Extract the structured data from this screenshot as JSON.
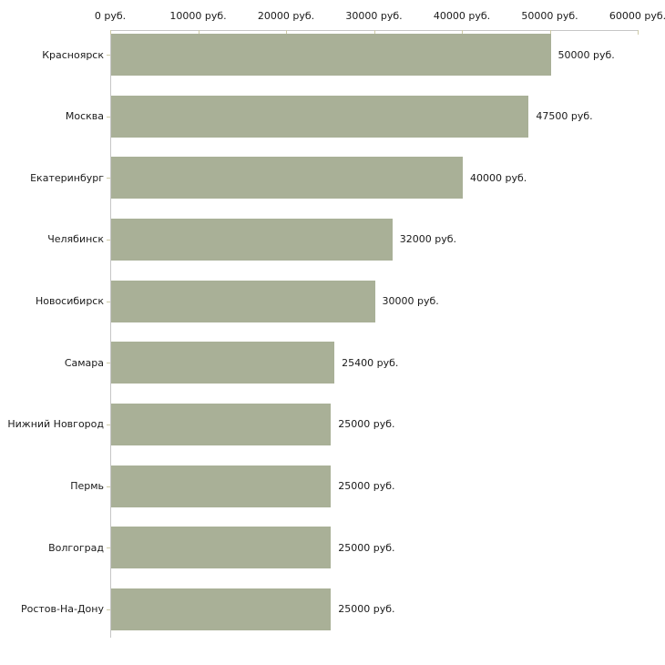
{
  "chart_data": {
    "type": "bar",
    "orientation": "horizontal",
    "title": "",
    "xlabel": "",
    "ylabel": "",
    "grid": false,
    "legend": null,
    "categories": [
      "Красноярск",
      "Москва",
      "Екатеринбург",
      "Челябинск",
      "Новосибирск",
      "Самара",
      "Нижний Новгород",
      "Пермь",
      "Волгоград",
      "Ростов-На-Дону"
    ],
    "values": [
      50000,
      47500,
      40000,
      32000,
      30000,
      25400,
      25000,
      25000,
      25000,
      25000
    ],
    "value_labels": [
      "50000 руб.",
      "47500 руб.",
      "40000 руб.",
      "32000 руб.",
      "30000 руб.",
      "25400 руб.",
      "25000 руб.",
      "25000 руб.",
      "25000 руб.",
      "25000 руб."
    ],
    "x_axis": {
      "position": "top",
      "min": 0,
      "max": 60000,
      "tick_values": [
        0,
        10000,
        20000,
        30000,
        40000,
        50000,
        60000
      ],
      "tick_labels": [
        "0 руб.",
        "10000 руб.",
        "20000 руб.",
        "30000 руб.",
        "40000 руб.",
        "50000 руб.",
        "60000 руб."
      ]
    },
    "colors": {
      "bar_fill": "#a9b097",
      "axis_line": "#c6c6c6",
      "tick_mark": "#cdcaa6",
      "text": "#1a1a1a",
      "background": "#ffffff"
    }
  }
}
